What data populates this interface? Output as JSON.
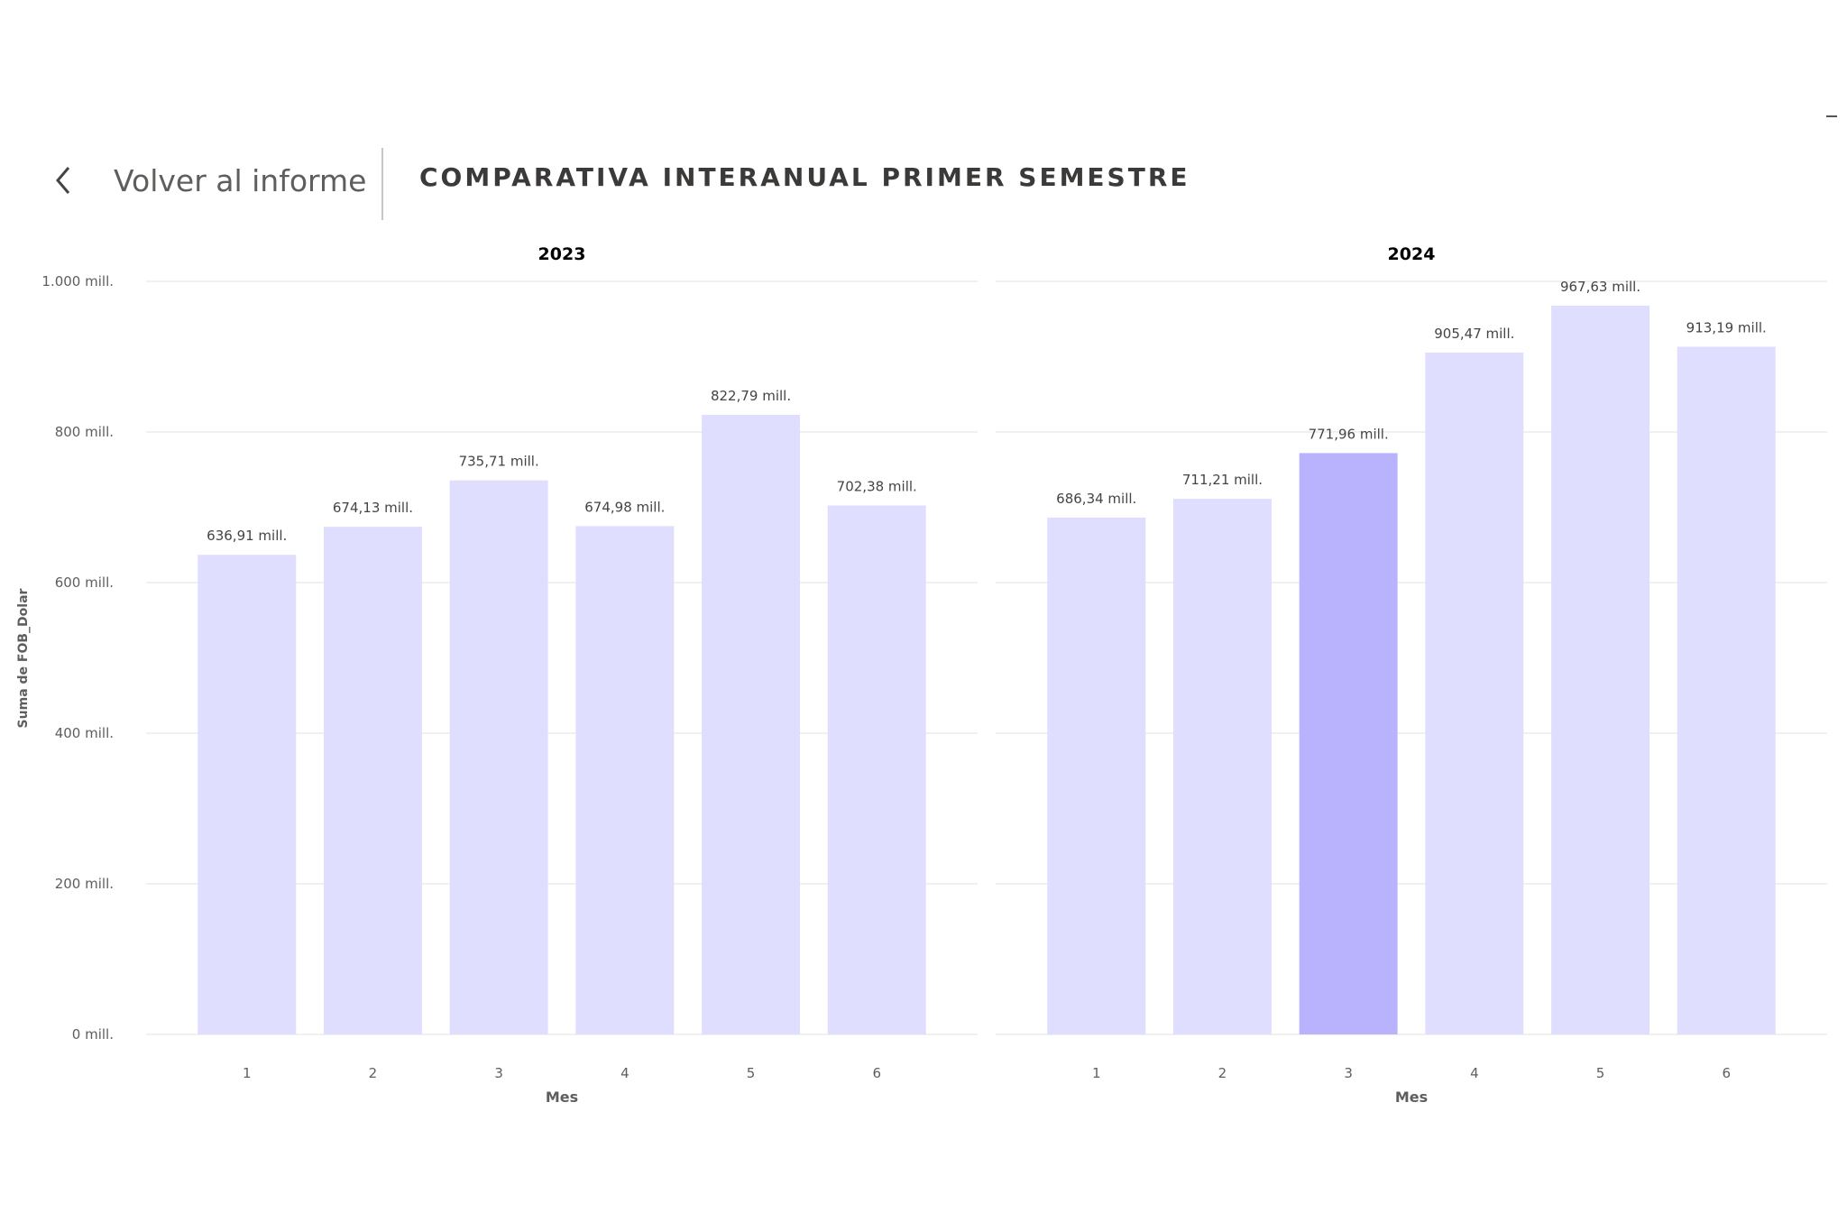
{
  "header": {
    "back_label": "Volver al informe",
    "title": "COMPARATIVA INTERANUAL PRIMER SEMESTRE"
  },
  "colors": {
    "bar": "#e0defe",
    "bar_highlight": "#b8b3fc",
    "grid": "#ececec",
    "tick_text": "#605e5c"
  },
  "chart_data": {
    "type": "bar",
    "ylabel": "Suma de FOB_Dolar",
    "xlabel": "Mes",
    "ylim": [
      0,
      1000
    ],
    "yticks": [
      {
        "value": 0,
        "label": "0 mill."
      },
      {
        "value": 200,
        "label": "200 mill."
      },
      {
        "value": 400,
        "label": "400 mill."
      },
      {
        "value": 600,
        "label": "600 mill."
      },
      {
        "value": 800,
        "label": "800 mill."
      },
      {
        "value": 1000,
        "label": "1.000 mill."
      }
    ],
    "grid": true,
    "panels": [
      {
        "title": "2023",
        "categories": [
          "1",
          "2",
          "3",
          "4",
          "5",
          "6"
        ],
        "values": [
          636.91,
          674.13,
          735.71,
          674.98,
          822.79,
          702.38
        ],
        "labels": [
          "636,91 mill.",
          "674,13 mill.",
          "735,71 mill.",
          "674,98 mill.",
          "822,79 mill.",
          "702,38 mill."
        ],
        "highlight_index": null
      },
      {
        "title": "2024",
        "categories": [
          "1",
          "2",
          "3",
          "4",
          "5",
          "6"
        ],
        "values": [
          686.34,
          711.21,
          771.96,
          905.47,
          967.63,
          913.19
        ],
        "labels": [
          "686,34 mill.",
          "711,21 mill.",
          "771,96 mill.",
          "905,47 mill.",
          "967,63 mill.",
          "913,19 mill."
        ],
        "highlight_index": 2
      }
    ]
  }
}
